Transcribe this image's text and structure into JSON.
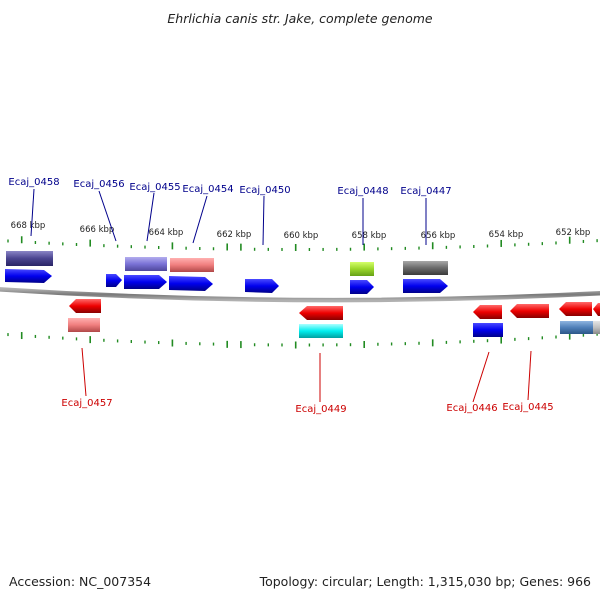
{
  "title": "Ehrlichia canis str. Jake, complete genome",
  "footer": {
    "accession": "Accession: NC_007354",
    "info": "Topology: circular; Length: 1,315,030 bp; Genes: 966"
  },
  "colors": {
    "forward_label": "#00008b",
    "reverse_label": "#cc0000",
    "ticks": "#228b22",
    "backbone": "#808080"
  },
  "ticks": [
    "668 kbp",
    "666 kbp",
    "664 kbp",
    "662 kbp",
    "660 kbp",
    "658 kbp",
    "656 kbp",
    "654 kbp",
    "652 kbp"
  ],
  "forward_labels": [
    "Ecaj_0458",
    "Ecaj_0456",
    "Ecaj_0455",
    "Ecaj_0454",
    "Ecaj_0450",
    "Ecaj_0448",
    "Ecaj_0447"
  ],
  "reverse_labels": [
    "Ecaj_0457",
    "Ecaj_0449",
    "Ecaj_0446",
    "Ecaj_0445"
  ]
}
